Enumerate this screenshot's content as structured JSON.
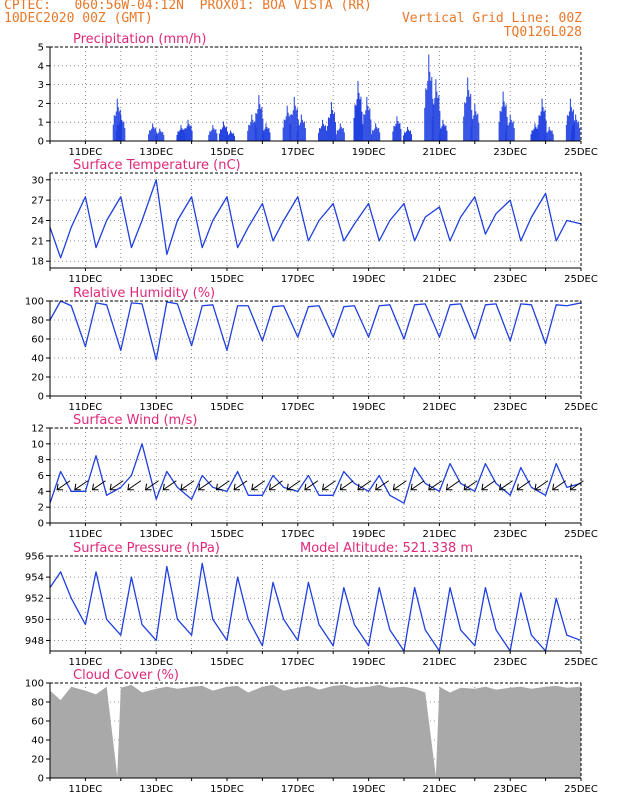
{
  "header": {
    "line1_left": "CPTEC:   060:56W-04:12N  PROX01: BOA VISTA (RR)",
    "line2_left": "10DEC2020 00Z (GMT)",
    "line2_right": "Vertical Grid Line: 00Z",
    "line3_right": "TQ0126L028"
  },
  "colors": {
    "header": "#e8782a",
    "title": "#e0287a",
    "series": "#1f3fe0",
    "cloud": "#a9a9a9"
  },
  "x_ticks": [
    "11DEC",
    "13DEC",
    "15DEC",
    "17DEC",
    "19DEC",
    "21DEC",
    "23DEC",
    "25DEC"
  ],
  "chart_data": [
    {
      "type": "bar",
      "title": "Precipitation (mm/h)",
      "x_range_days": [
        10,
        25
      ],
      "ylim": [
        0,
        5
      ],
      "yticks": [
        0,
        1,
        2,
        3,
        4,
        5
      ],
      "grid": true,
      "events": [
        {
          "day": 11.9,
          "value": 2.4
        },
        {
          "day": 12.0,
          "value": 1.5
        },
        {
          "day": 12.9,
          "value": 1.0
        },
        {
          "day": 13.1,
          "value": 0.7
        },
        {
          "day": 13.7,
          "value": 0.9
        },
        {
          "day": 13.9,
          "value": 1.2
        },
        {
          "day": 14.6,
          "value": 0.9
        },
        {
          "day": 14.9,
          "value": 1.1
        },
        {
          "day": 15.1,
          "value": 0.6
        },
        {
          "day": 15.7,
          "value": 1.5
        },
        {
          "day": 15.9,
          "value": 2.6
        },
        {
          "day": 16.1,
          "value": 1.0
        },
        {
          "day": 16.7,
          "value": 2.0
        },
        {
          "day": 16.9,
          "value": 2.5
        },
        {
          "day": 17.1,
          "value": 1.5
        },
        {
          "day": 17.7,
          "value": 1.2
        },
        {
          "day": 17.95,
          "value": 2.2
        },
        {
          "day": 18.2,
          "value": 1.0
        },
        {
          "day": 18.7,
          "value": 3.4
        },
        {
          "day": 18.95,
          "value": 2.5
        },
        {
          "day": 19.2,
          "value": 1.0
        },
        {
          "day": 19.8,
          "value": 1.4
        },
        {
          "day": 20.1,
          "value": 0.8
        },
        {
          "day": 20.7,
          "value": 4.9
        },
        {
          "day": 20.9,
          "value": 3.5
        },
        {
          "day": 21.1,
          "value": 1.2
        },
        {
          "day": 21.8,
          "value": 3.6
        },
        {
          "day": 22.0,
          "value": 2.1
        },
        {
          "day": 22.8,
          "value": 2.8
        },
        {
          "day": 23.0,
          "value": 1.5
        },
        {
          "day": 23.7,
          "value": 1.0
        },
        {
          "day": 23.9,
          "value": 2.4
        },
        {
          "day": 24.1,
          "value": 0.8
        },
        {
          "day": 24.7,
          "value": 2.4
        },
        {
          "day": 24.85,
          "value": 1.5
        }
      ]
    },
    {
      "type": "line",
      "title": "Surface Temperature (nC)",
      "x_range_days": [
        10,
        25
      ],
      "ylim": [
        17,
        31
      ],
      "yticks": [
        18,
        21,
        24,
        27,
        30
      ],
      "grid": true,
      "x": [
        10.0,
        10.3,
        10.6,
        11.0,
        11.3,
        11.6,
        12.0,
        12.3,
        12.6,
        13.0,
        13.3,
        13.6,
        14.0,
        14.3,
        14.6,
        15.0,
        15.3,
        15.6,
        16.0,
        16.3,
        16.6,
        17.0,
        17.3,
        17.6,
        18.0,
        18.3,
        18.6,
        19.0,
        19.3,
        19.6,
        20.0,
        20.3,
        20.6,
        21.0,
        21.3,
        21.6,
        22.0,
        22.3,
        22.6,
        23.0,
        23.3,
        23.6,
        24.0,
        24.3,
        24.6,
        25.0
      ],
      "y": [
        23,
        18.5,
        23,
        27.5,
        20,
        24,
        27.5,
        20,
        24,
        30,
        19,
        24,
        27.5,
        20,
        24,
        27.5,
        20,
        23,
        26.5,
        21,
        24,
        27.5,
        21,
        24,
        26.5,
        21,
        23.5,
        26.5,
        21,
        24,
        26.5,
        21,
        24.5,
        26,
        21,
        24.5,
        27.5,
        22,
        25,
        27,
        21,
        24.5,
        28,
        21,
        24,
        23.5
      ]
    },
    {
      "type": "line",
      "title": "Relative Humidity (%)",
      "x_range_days": [
        10,
        25
      ],
      "ylim": [
        0,
        100
      ],
      "yticks": [
        0,
        20,
        40,
        60,
        80,
        100
      ],
      "grid": true,
      "x": [
        10.0,
        10.3,
        10.6,
        11.0,
        11.3,
        11.6,
        12.0,
        12.3,
        12.6,
        13.0,
        13.3,
        13.6,
        14.0,
        14.3,
        14.6,
        15.0,
        15.3,
        15.6,
        16.0,
        16.3,
        16.6,
        17.0,
        17.3,
        17.6,
        18.0,
        18.3,
        18.6,
        19.0,
        19.3,
        19.6,
        20.0,
        20.3,
        20.6,
        21.0,
        21.3,
        21.6,
        22.0,
        22.3,
        22.6,
        23.0,
        23.3,
        23.6,
        24.0,
        24.3,
        24.6,
        25.0
      ],
      "y": [
        80,
        100,
        95,
        52,
        98,
        96,
        48,
        98,
        97,
        38,
        99,
        97,
        53,
        95,
        96,
        48,
        95,
        95,
        58,
        94,
        95,
        62,
        94,
        95,
        62,
        94,
        95,
        62,
        95,
        96,
        60,
        96,
        97,
        62,
        96,
        97,
        60,
        96,
        97,
        58,
        97,
        96,
        55,
        96,
        95,
        98
      ]
    },
    {
      "type": "line",
      "title": "Surface Wind (m/s)",
      "x_range_days": [
        10,
        25
      ],
      "ylim": [
        0,
        12
      ],
      "yticks": [
        0,
        2,
        4,
        6,
        8,
        10,
        12
      ],
      "grid": true,
      "x": [
        10.0,
        10.3,
        10.6,
        11.0,
        11.3,
        11.6,
        12.0,
        12.3,
        12.6,
        13.0,
        13.3,
        13.6,
        14.0,
        14.3,
        14.6,
        15.0,
        15.3,
        15.6,
        16.0,
        16.3,
        16.6,
        17.0,
        17.3,
        17.6,
        18.0,
        18.3,
        18.6,
        19.0,
        19.3,
        19.6,
        20.0,
        20.3,
        20.6,
        21.0,
        21.3,
        21.6,
        22.0,
        22.3,
        22.6,
        23.0,
        23.3,
        23.6,
        24.0,
        24.3,
        24.6,
        25.0
      ],
      "y": [
        2.5,
        6.5,
        4,
        4,
        8.5,
        3.5,
        4.5,
        6,
        10,
        3,
        6.5,
        4.5,
        3,
        6,
        4.5,
        4,
        6.5,
        3.5,
        3.5,
        6,
        4.5,
        4,
        6,
        3.5,
        3.5,
        6.5,
        5,
        4,
        6,
        3.5,
        2.5,
        7,
        5,
        4,
        7.5,
        5,
        4,
        7.5,
        5,
        3.5,
        7,
        4.5,
        3.5,
        7.5,
        4.5,
        5
      ]
    },
    {
      "type": "line",
      "title": "Surface Pressure (hPa)",
      "annotation": "Model Altitude: 521.338 m",
      "x_range_days": [
        10,
        25
      ],
      "ylim": [
        947,
        956
      ],
      "yticks": [
        948,
        950,
        952,
        954,
        956
      ],
      "grid": true,
      "x": [
        10.0,
        10.3,
        10.6,
        11.0,
        11.3,
        11.6,
        12.0,
        12.3,
        12.6,
        13.0,
        13.3,
        13.6,
        14.0,
        14.3,
        14.6,
        15.0,
        15.3,
        15.6,
        16.0,
        16.3,
        16.6,
        17.0,
        17.3,
        17.6,
        18.0,
        18.3,
        18.6,
        19.0,
        19.3,
        19.6,
        20.0,
        20.3,
        20.6,
        21.0,
        21.3,
        21.6,
        22.0,
        22.3,
        22.6,
        23.0,
        23.3,
        23.6,
        24.0,
        24.3,
        24.6,
        25.0
      ],
      "y": [
        953,
        954.5,
        952,
        949.5,
        954.5,
        950,
        948.5,
        954,
        949.5,
        948,
        955,
        950,
        948.5,
        955.3,
        950,
        948,
        954,
        950,
        947.5,
        953.5,
        950,
        948,
        953.5,
        949.5,
        947.5,
        953,
        949.5,
        947.5,
        953,
        949,
        947,
        953,
        949,
        947,
        953,
        949,
        947.5,
        953,
        949,
        947,
        952.5,
        948.5,
        947,
        952,
        948.5,
        948
      ]
    },
    {
      "type": "area",
      "title": "Cloud Cover (%)",
      "x_range_days": [
        10,
        25
      ],
      "ylim": [
        0,
        100
      ],
      "yticks": [
        0,
        20,
        40,
        60,
        80,
        100
      ],
      "grid": true,
      "x": [
        10.0,
        10.3,
        10.6,
        11.0,
        11.3,
        11.6,
        11.9,
        12.0,
        12.3,
        12.6,
        13.0,
        13.3,
        13.6,
        14.0,
        14.3,
        14.6,
        15.0,
        15.3,
        15.6,
        16.0,
        16.3,
        16.6,
        17.0,
        17.3,
        17.6,
        18.0,
        18.3,
        18.6,
        19.0,
        19.3,
        19.6,
        20.0,
        20.3,
        20.6,
        20.9,
        21.0,
        21.3,
        21.6,
        22.0,
        22.3,
        22.6,
        23.0,
        23.3,
        23.6,
        24.0,
        24.3,
        24.6,
        25.0
      ],
      "y": [
        92,
        82,
        96,
        92,
        88,
        96,
        2,
        95,
        98,
        90,
        94,
        96,
        94,
        96,
        97,
        92,
        96,
        97,
        90,
        96,
        98,
        92,
        95,
        97,
        93,
        97,
        98,
        95,
        96,
        98,
        95,
        96,
        94,
        90,
        2,
        96,
        90,
        95,
        94,
        96,
        93,
        95,
        96,
        94,
        96,
        97,
        95,
        96
      ]
    }
  ]
}
